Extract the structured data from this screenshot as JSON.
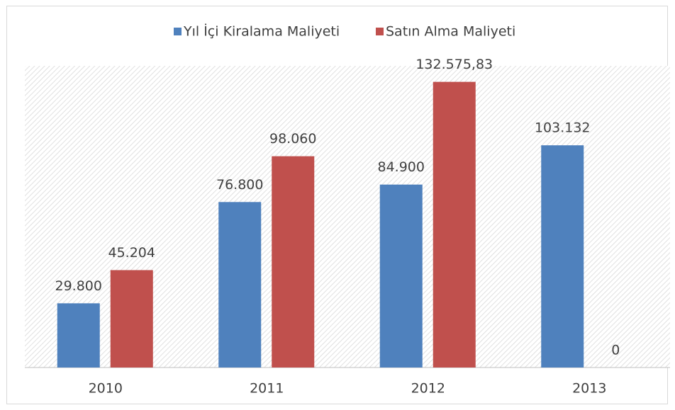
{
  "chart_data": {
    "type": "bar",
    "categories": [
      "2010",
      "2011",
      "2012",
      "2013"
    ],
    "series": [
      {
        "name": "Yıl İçi Kiralama Maliyeti",
        "color": "#4f81bd",
        "values": [
          29800,
          76800,
          84900,
          103132
        ],
        "value_labels": [
          "29.800",
          "76.800",
          "84.900",
          "103.132"
        ]
      },
      {
        "name": "Satın Alma Maliyeti",
        "color": "#c0504d",
        "values": [
          45204,
          98060,
          132575.83,
          0
        ],
        "value_labels": [
          "45.204",
          "98.060",
          "132.575,83",
          "0"
        ]
      }
    ],
    "ylim": [
      0,
      140000
    ],
    "legend": "top"
  }
}
